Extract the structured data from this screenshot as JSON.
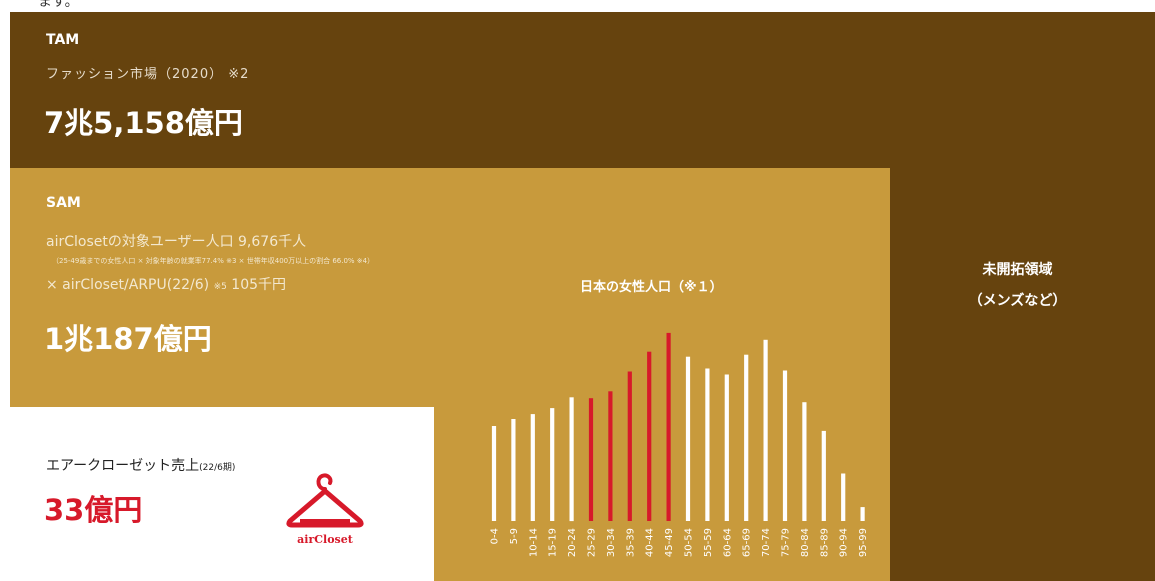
{
  "header": {
    "cut_text": "ます。"
  },
  "tam": {
    "label": "TAM",
    "description": "ファッション市場（2020） ※2",
    "value": "7兆5,158億円"
  },
  "unexplored": {
    "line1": "未開拓領域",
    "line2": "（メンズなど）"
  },
  "sam": {
    "label": "SAM",
    "line1": "airClosetの対象ユーザー人口 9,676千人",
    "line2": "（25-49歳までの女性人口 × 対象年齢の就業率77.4% ※3 × 世帯年収400万以上の割合 66.0% ※4）",
    "line3_main": "× airCloset/ARPU(22/6)",
    "line3_note": "※5",
    "line3_value": "105千円",
    "value": "1兆187億円"
  },
  "sales": {
    "label": "エアークローゼット売上",
    "label_note": "(22/6期)",
    "value": "33億円"
  },
  "logo": {
    "text": "airCloset"
  },
  "colors": {
    "tam": "#66430e",
    "sam": "#c89a3c",
    "accent": "#d7192a",
    "bar_default": "#ffffff"
  },
  "chart_data": {
    "type": "bar",
    "title": "日本の女性人口（※１）",
    "categories": [
      "0-4",
      "5-9",
      "10-14",
      "15-19",
      "20-24",
      "25-29",
      "30-34",
      "35-39",
      "40-44",
      "45-49",
      "50-54",
      "55-59",
      "60-64",
      "65-69",
      "70-74",
      "75-79",
      "80-84",
      "85-89",
      "90-94",
      "95-99"
    ],
    "values": [
      96,
      103,
      108,
      114,
      125,
      124,
      131,
      151,
      171,
      190,
      166,
      154,
      148,
      168,
      183,
      152,
      120,
      91,
      48,
      14
    ],
    "highlighted": [
      "25-29",
      "30-34",
      "35-39",
      "40-44",
      "45-49"
    ],
    "ylim": [
      0,
      200
    ],
    "grid": false
  }
}
